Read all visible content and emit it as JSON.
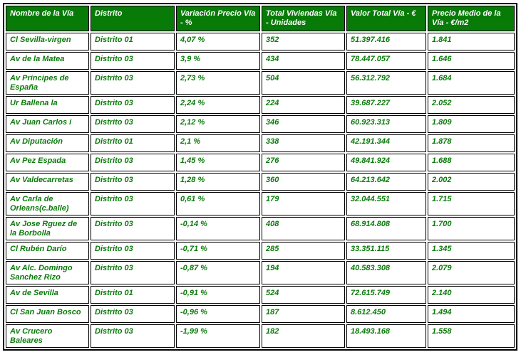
{
  "colors": {
    "header_bg": "#087a08",
    "cell_text": "#0a7a0a",
    "border": "#000000",
    "background": "#ffffff"
  },
  "table": {
    "columns": [
      {
        "key": "nombre",
        "label": "Nombre de la Vía"
      },
      {
        "key": "distrito",
        "label": "Distrito"
      },
      {
        "key": "variacion",
        "label": "Variación Precio Vía  - %"
      },
      {
        "key": "unidades",
        "label": "Total Viviendas Vía - Unidades"
      },
      {
        "key": "valor",
        "label": "Valor Total Vía - €"
      },
      {
        "key": "precio",
        "label": "Precio Medio de la Vía - €/m2"
      }
    ],
    "rows": [
      {
        "nombre": "Cl Sevilla-virgen",
        "distrito": "Distrito 01",
        "variacion": "4,07 %",
        "unidades": "352",
        "valor": "51.397.416",
        "precio": "1.841"
      },
      {
        "nombre": "Av de la Matea",
        "distrito": "Distrito 03",
        "variacion": "3,9 %",
        "unidades": "434",
        "valor": "78.447.057",
        "precio": "1.646"
      },
      {
        "nombre": "Av Príncipes de España",
        "distrito": "Distrito 03",
        "variacion": "2,73 %",
        "unidades": "504",
        "valor": "56.312.792",
        "precio": "1.684"
      },
      {
        "nombre": "Ur Ballena la",
        "distrito": "Distrito 03",
        "variacion": "2,24 %",
        "unidades": "224",
        "valor": "39.687.227",
        "precio": "2.052"
      },
      {
        "nombre": "Av Juan Carlos i",
        "distrito": "Distrito 03",
        "variacion": "2,12 %",
        "unidades": "346",
        "valor": "60.923.313",
        "precio": "1.809"
      },
      {
        "nombre": "Av Diputación",
        "distrito": "Distrito 01",
        "variacion": "2,1 %",
        "unidades": "338",
        "valor": "42.191.344",
        "precio": "1.878"
      },
      {
        "nombre": "Av Pez Espada",
        "distrito": "Distrito 03",
        "variacion": "1,45 %",
        "unidades": "276",
        "valor": "49.841.924",
        "precio": "1.688"
      },
      {
        "nombre": "Av Valdecarretas",
        "distrito": "Distrito 03",
        "variacion": "1,28 %",
        "unidades": "360",
        "valor": "64.213.642",
        "precio": "2.002"
      },
      {
        "nombre": "Av Carla de Orleans(c.balle)",
        "distrito": "Distrito 03",
        "variacion": "0,61 %",
        "unidades": "179",
        "valor": "32.044.551",
        "precio": "1.715"
      },
      {
        "nombre": "Av Jose Rguez de la Borbolla",
        "distrito": "Distrito 03",
        "variacion": "-0,14 %",
        "unidades": "408",
        "valor": "68.914.808",
        "precio": "1.700"
      },
      {
        "nombre": "Cl Rubén Darío",
        "distrito": "Distrito 03",
        "variacion": "-0,71 %",
        "unidades": "285",
        "valor": "33.351.115",
        "precio": "1.345"
      },
      {
        "nombre": "Av Alc. Domingo Sanchez Rizo",
        "distrito": "Distrito 03",
        "variacion": "-0,87 %",
        "unidades": "194",
        "valor": "40.583.308",
        "precio": "2.079"
      },
      {
        "nombre": "Av de Sevilla",
        "distrito": "Distrito 01",
        "variacion": "-0,91 %",
        "unidades": "524",
        "valor": "72.615.749",
        "precio": "2.140"
      },
      {
        "nombre": "Cl San Juan Bosco",
        "distrito": "Distrito 03",
        "variacion": "-0,96 %",
        "unidades": "187",
        "valor": "8.612.450",
        "precio": "1.494"
      },
      {
        "nombre": "Av Crucero Baleares",
        "distrito": "Distrito 03",
        "variacion": "-1,99 %",
        "unidades": "182",
        "valor": "18.493.168",
        "precio": "1.558"
      }
    ]
  },
  "chart_data": {
    "type": "table",
    "title": "",
    "columns": [
      "Nombre de la Vía",
      "Distrito",
      "Variación Precio Vía - %",
      "Total Viviendas Vía - Unidades",
      "Valor Total Vía - €",
      "Precio Medio de la Vía - €/m2"
    ],
    "rows": [
      [
        "Cl Sevilla-virgen",
        "Distrito 01",
        4.07,
        352,
        51397416,
        1841
      ],
      [
        "Av de la Matea",
        "Distrito 03",
        3.9,
        434,
        78447057,
        1646
      ],
      [
        "Av Príncipes de España",
        "Distrito 03",
        2.73,
        504,
        56312792,
        1684
      ],
      [
        "Ur Ballena la",
        "Distrito 03",
        2.24,
        224,
        39687227,
        2052
      ],
      [
        "Av Juan Carlos i",
        "Distrito 03",
        2.12,
        346,
        60923313,
        1809
      ],
      [
        "Av Diputación",
        "Distrito 01",
        2.1,
        338,
        42191344,
        1878
      ],
      [
        "Av Pez Espada",
        "Distrito 03",
        1.45,
        276,
        49841924,
        1688
      ],
      [
        "Av Valdecarretas",
        "Distrito 03",
        1.28,
        360,
        64213642,
        2002
      ],
      [
        "Av Carla de Orleans(c.balle)",
        "Distrito 03",
        0.61,
        179,
        32044551,
        1715
      ],
      [
        "Av Jose Rguez de la Borbolla",
        "Distrito 03",
        -0.14,
        408,
        68914808,
        1700
      ],
      [
        "Cl Rubén Darío",
        "Distrito 03",
        -0.71,
        285,
        33351115,
        1345
      ],
      [
        "Av Alc. Domingo Sanchez Rizo",
        "Distrito 03",
        -0.87,
        194,
        40583308,
        2079
      ],
      [
        "Av de Sevilla",
        "Distrito 01",
        -0.91,
        524,
        72615749,
        2140
      ],
      [
        "Cl San Juan Bosco",
        "Distrito 03",
        -0.96,
        187,
        8612450,
        1494
      ],
      [
        "Av Crucero Baleares",
        "Distrito 03",
        -1.99,
        182,
        18493168,
        1558
      ]
    ]
  }
}
